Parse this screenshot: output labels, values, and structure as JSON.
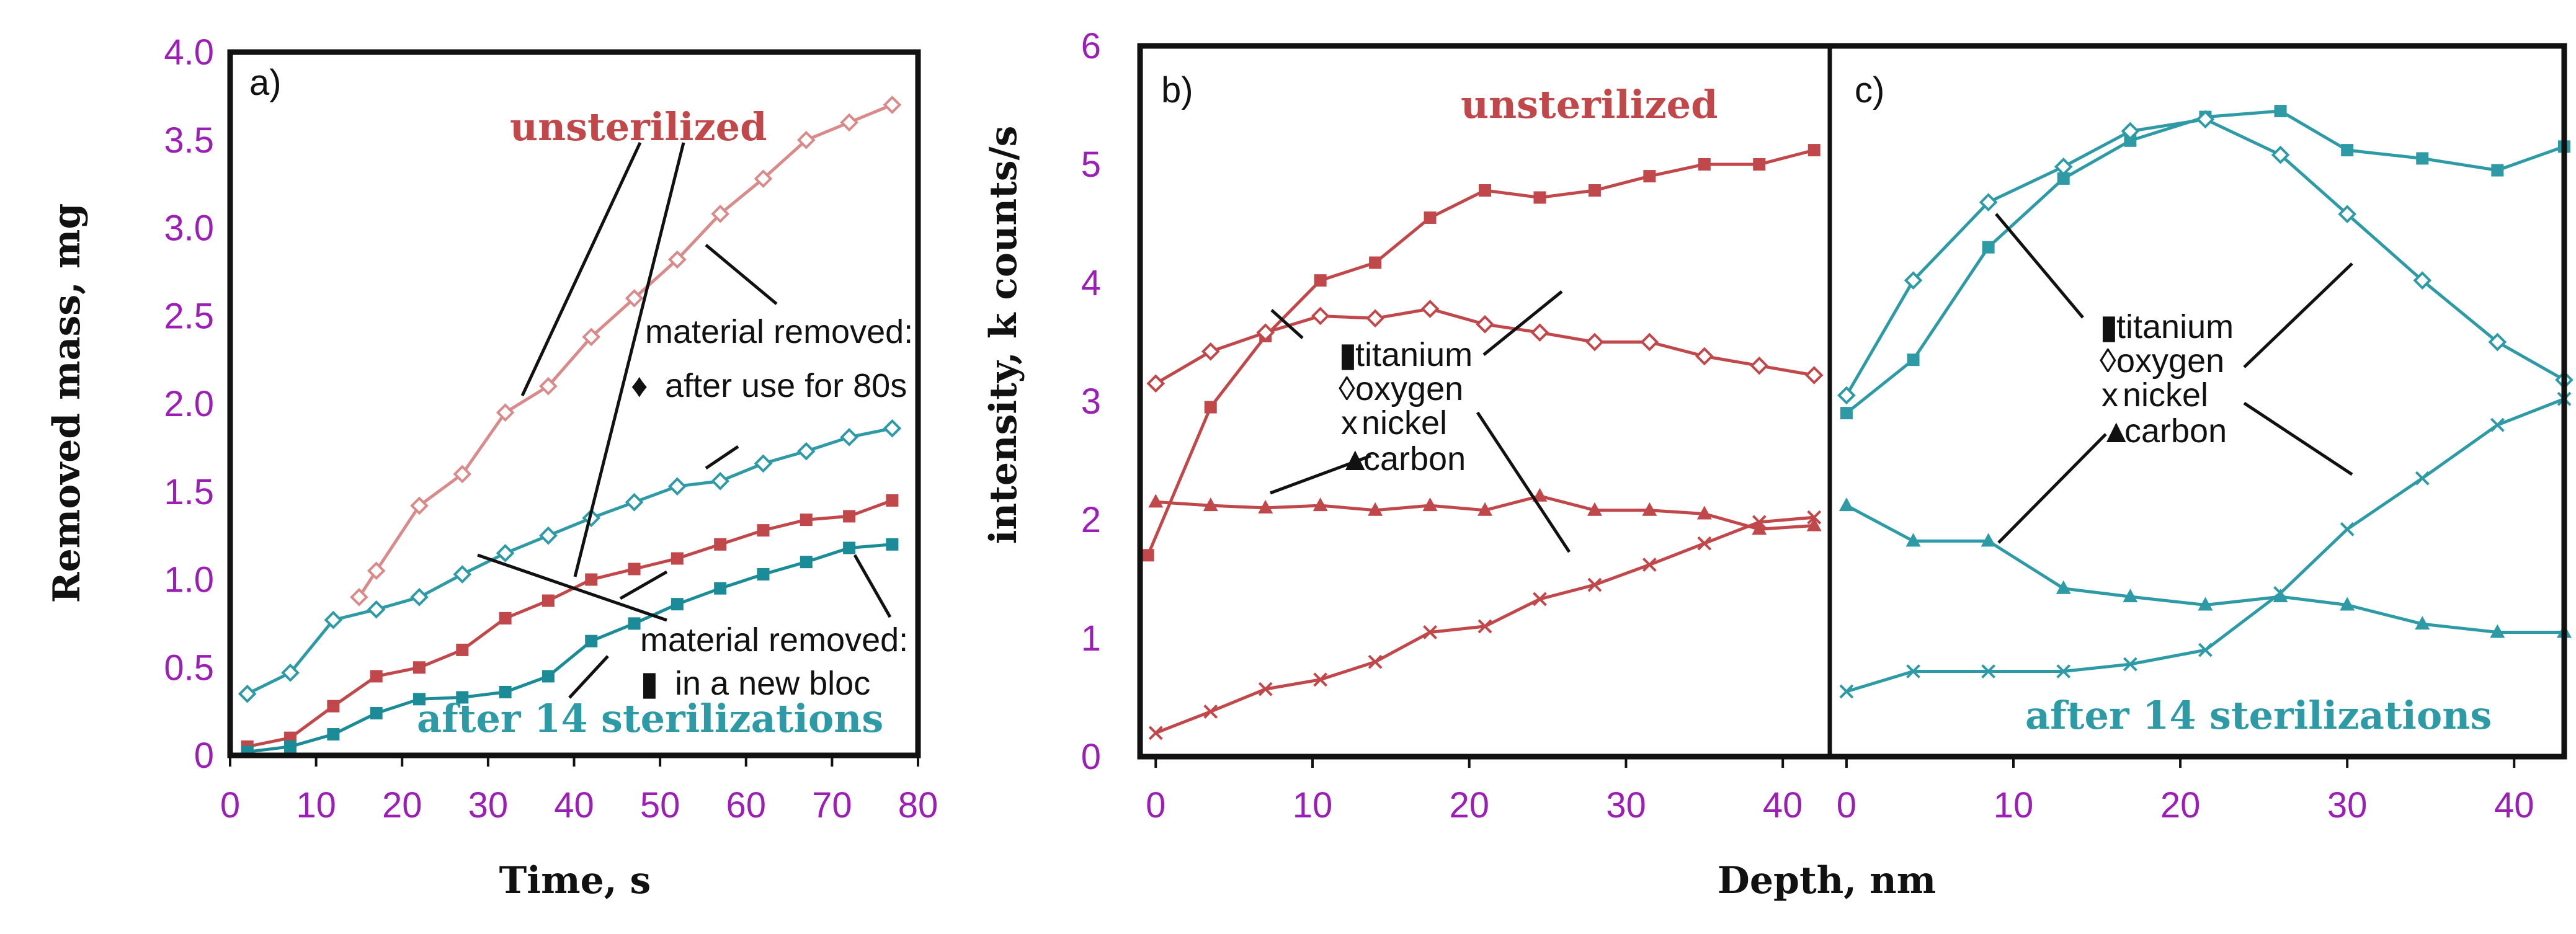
{
  "colors": {
    "unsterilized": "#c0474a",
    "unsterilized_light": "#d98a8a",
    "sterilized": "#2e9aa6",
    "sterilized_dark": "#1b8b98",
    "tick": "#9b1fb5",
    "text": "#111111",
    "frame": "#111111"
  },
  "chart_data": [
    {
      "panel": "a)",
      "type": "line",
      "xlabel": "Time, s",
      "ylabel": "Removed mass, mg",
      "xlim": [
        0,
        80
      ],
      "ylim": [
        0,
        4.0
      ],
      "xticks": [
        "0",
        "10",
        "20",
        "30",
        "40",
        "50",
        "60",
        "70",
        "80"
      ],
      "yticks": [
        "0",
        "0.5",
        "1.0",
        "1.5",
        "2.0",
        "2.5",
        "3.0",
        "3.5",
        "4.0"
      ],
      "series_labels": [
        "unsterilized",
        "after 14 sterilizations"
      ],
      "annotations": [
        {
          "lines": [
            "material removed:",
            "after use for 80s"
          ],
          "marker": "♦"
        },
        {
          "lines": [
            "material removed:",
            "in a new bloc"
          ],
          "marker": "▮"
        }
      ],
      "series": [
        {
          "name": "unsterilized, after use for 80s",
          "color_key": "unsterilized_light",
          "marker": "diamond",
          "points": [
            [
              15,
              0.9
            ],
            [
              17,
              1.05
            ],
            [
              22,
              1.42
            ],
            [
              27,
              1.6
            ],
            [
              32,
              1.95
            ],
            [
              37,
              2.1
            ],
            [
              42,
              2.38
            ],
            [
              47,
              2.6
            ],
            [
              52,
              2.82
            ],
            [
              57,
              3.08
            ],
            [
              62,
              3.28
            ],
            [
              67,
              3.5
            ],
            [
              72,
              3.6
            ],
            [
              77,
              3.7
            ]
          ]
        },
        {
          "name": "unsterilized, in a new bloc",
          "color_key": "unsterilized",
          "marker": "square",
          "points": [
            [
              2,
              0.05
            ],
            [
              7,
              0.1
            ],
            [
              12,
              0.28
            ],
            [
              17,
              0.45
            ],
            [
              22,
              0.5
            ],
            [
              27,
              0.6
            ],
            [
              32,
              0.78
            ],
            [
              37,
              0.88
            ],
            [
              42,
              1.0
            ],
            [
              47,
              1.06
            ],
            [
              52,
              1.12
            ],
            [
              57,
              1.2
            ],
            [
              62,
              1.28
            ],
            [
              67,
              1.34
            ],
            [
              72,
              1.36
            ],
            [
              77,
              1.45
            ]
          ]
        },
        {
          "name": "after 14 sterilizations, after use for 80s",
          "color_key": "sterilized",
          "marker": "diamond",
          "points": [
            [
              2,
              0.35
            ],
            [
              7,
              0.47
            ],
            [
              12,
              0.77
            ],
            [
              17,
              0.83
            ],
            [
              22,
              0.9
            ],
            [
              27,
              1.03
            ],
            [
              32,
              1.15
            ],
            [
              37,
              1.25
            ],
            [
              42,
              1.35
            ],
            [
              47,
              1.44
            ],
            [
              52,
              1.53
            ],
            [
              57,
              1.56
            ],
            [
              62,
              1.66
            ],
            [
              67,
              1.73
            ],
            [
              72,
              1.81
            ],
            [
              77,
              1.86
            ]
          ]
        },
        {
          "name": "after 14 sterilizations, in a new bloc",
          "color_key": "sterilized_dark",
          "marker": "square",
          "points": [
            [
              2,
              0.02
            ],
            [
              7,
              0.05
            ],
            [
              12,
              0.12
            ],
            [
              17,
              0.24
            ],
            [
              22,
              0.32
            ],
            [
              27,
              0.33
            ],
            [
              32,
              0.36
            ],
            [
              37,
              0.45
            ],
            [
              42,
              0.65
            ],
            [
              47,
              0.75
            ],
            [
              52,
              0.86
            ],
            [
              57,
              0.95
            ],
            [
              62,
              1.03
            ],
            [
              67,
              1.1
            ],
            [
              72,
              1.18
            ],
            [
              77,
              1.2
            ]
          ]
        }
      ]
    },
    {
      "panel": "b)",
      "type": "line",
      "ylabel": "intensity, k counts/s",
      "xlim": [
        -1,
        43
      ],
      "ylim": [
        0,
        6
      ],
      "xticks": [
        "0",
        "10",
        "20",
        "30",
        "40"
      ],
      "yticks": [
        "0",
        "1",
        "2",
        "3",
        "4",
        "5",
        "6"
      ],
      "series_label": "unsterilized",
      "legend": [
        {
          "marker": "▮",
          "label": "titanium"
        },
        {
          "marker": "◊",
          "label": "oxygen"
        },
        {
          "marker": "x",
          "label": "nickel"
        },
        {
          "marker": "▲",
          "label": "carbon"
        }
      ],
      "series": [
        {
          "name": "titanium",
          "marker": "square",
          "points": [
            [
              -0.5,
              1.7
            ],
            [
              3.5,
              2.95
            ],
            [
              7,
              3.55
            ],
            [
              10.5,
              4.02
            ],
            [
              14,
              4.17
            ],
            [
              17.5,
              4.55
            ],
            [
              21,
              4.78
            ],
            [
              24.5,
              4.72
            ],
            [
              28,
              4.78
            ],
            [
              31.5,
              4.9
            ],
            [
              35,
              5.0
            ],
            [
              38.5,
              5.0
            ],
            [
              42,
              5.12
            ]
          ]
        },
        {
          "name": "oxygen",
          "marker": "diamond",
          "points": [
            [
              0,
              3.15
            ],
            [
              3.5,
              3.42
            ],
            [
              7,
              3.58
            ],
            [
              10.5,
              3.72
            ],
            [
              14,
              3.7
            ],
            [
              17.5,
              3.78
            ],
            [
              21,
              3.65
            ],
            [
              24.5,
              3.58
            ],
            [
              28,
              3.5
            ],
            [
              31.5,
              3.5
            ],
            [
              35,
              3.38
            ],
            [
              38.5,
              3.3
            ],
            [
              42,
              3.22
            ]
          ]
        },
        {
          "name": "nickel",
          "marker": "x",
          "points": [
            [
              0,
              0.2
            ],
            [
              3.5,
              0.38
            ],
            [
              7,
              0.57
            ],
            [
              10.5,
              0.65
            ],
            [
              14,
              0.8
            ],
            [
              17.5,
              1.05
            ],
            [
              21,
              1.1
            ],
            [
              24.5,
              1.33
            ],
            [
              28,
              1.45
            ],
            [
              31.5,
              1.62
            ],
            [
              35,
              1.8
            ],
            [
              38.5,
              1.98
            ],
            [
              42,
              2.02
            ]
          ]
        },
        {
          "name": "carbon",
          "marker": "triangle",
          "points": [
            [
              0,
              2.15
            ],
            [
              3.5,
              2.12
            ],
            [
              7,
              2.1
            ],
            [
              10.5,
              2.12
            ],
            [
              14,
              2.08
            ],
            [
              17.5,
              2.12
            ],
            [
              21,
              2.08
            ],
            [
              24.5,
              2.2
            ],
            [
              28,
              2.08
            ],
            [
              31.5,
              2.08
            ],
            [
              35,
              2.05
            ],
            [
              38.5,
              1.92
            ],
            [
              42,
              1.95
            ]
          ]
        }
      ]
    },
    {
      "panel": "c)",
      "type": "line",
      "xlabel": "Depth, nm",
      "xlim": [
        -1,
        43
      ],
      "ylim": [
        0,
        6
      ],
      "xticks": [
        "0",
        "10",
        "20",
        "30",
        "40"
      ],
      "series_label": "after 14 sterilizations",
      "legend": [
        {
          "marker": "▮",
          "label": "titanium"
        },
        {
          "marker": "◊",
          "label": "oxygen"
        },
        {
          "marker": "x",
          "label": "nickel"
        },
        {
          "marker": "▲",
          "label": "carbon"
        }
      ],
      "series": [
        {
          "name": "titanium",
          "marker": "square",
          "points": [
            [
              0,
              2.9
            ],
            [
              4,
              3.35
            ],
            [
              8.5,
              4.3
            ],
            [
              13,
              4.88
            ],
            [
              17,
              5.2
            ],
            [
              21.5,
              5.4
            ],
            [
              26,
              5.45
            ],
            [
              30,
              5.12
            ],
            [
              34.5,
              5.05
            ],
            [
              39,
              4.95
            ],
            [
              43,
              5.15
            ]
          ]
        },
        {
          "name": "oxygen",
          "marker": "diamond",
          "points": [
            [
              0,
              3.05
            ],
            [
              4,
              4.02
            ],
            [
              8.5,
              4.68
            ],
            [
              13,
              4.98
            ],
            [
              17,
              5.28
            ],
            [
              21.5,
              5.38
            ],
            [
              26,
              5.08
            ],
            [
              30,
              4.58
            ],
            [
              34.5,
              4.02
            ],
            [
              39,
              3.5
            ],
            [
              43,
              3.18
            ]
          ]
        },
        {
          "name": "nickel",
          "marker": "x",
          "points": [
            [
              0,
              0.55
            ],
            [
              4,
              0.72
            ],
            [
              8.5,
              0.72
            ],
            [
              13,
              0.72
            ],
            [
              17,
              0.78
            ],
            [
              21.5,
              0.9
            ],
            [
              26,
              1.38
            ],
            [
              30,
              1.92
            ],
            [
              34.5,
              2.35
            ],
            [
              39,
              2.8
            ],
            [
              43,
              3.02
            ]
          ]
        },
        {
          "name": "carbon",
          "marker": "triangle",
          "points": [
            [
              0,
              2.12
            ],
            [
              4,
              1.82
            ],
            [
              8.5,
              1.82
            ],
            [
              13,
              1.42
            ],
            [
              17,
              1.35
            ],
            [
              21.5,
              1.28
            ],
            [
              26,
              1.35
            ],
            [
              30,
              1.28
            ],
            [
              34.5,
              1.12
            ],
            [
              39,
              1.05
            ],
            [
              43,
              1.05
            ]
          ]
        }
      ]
    }
  ]
}
